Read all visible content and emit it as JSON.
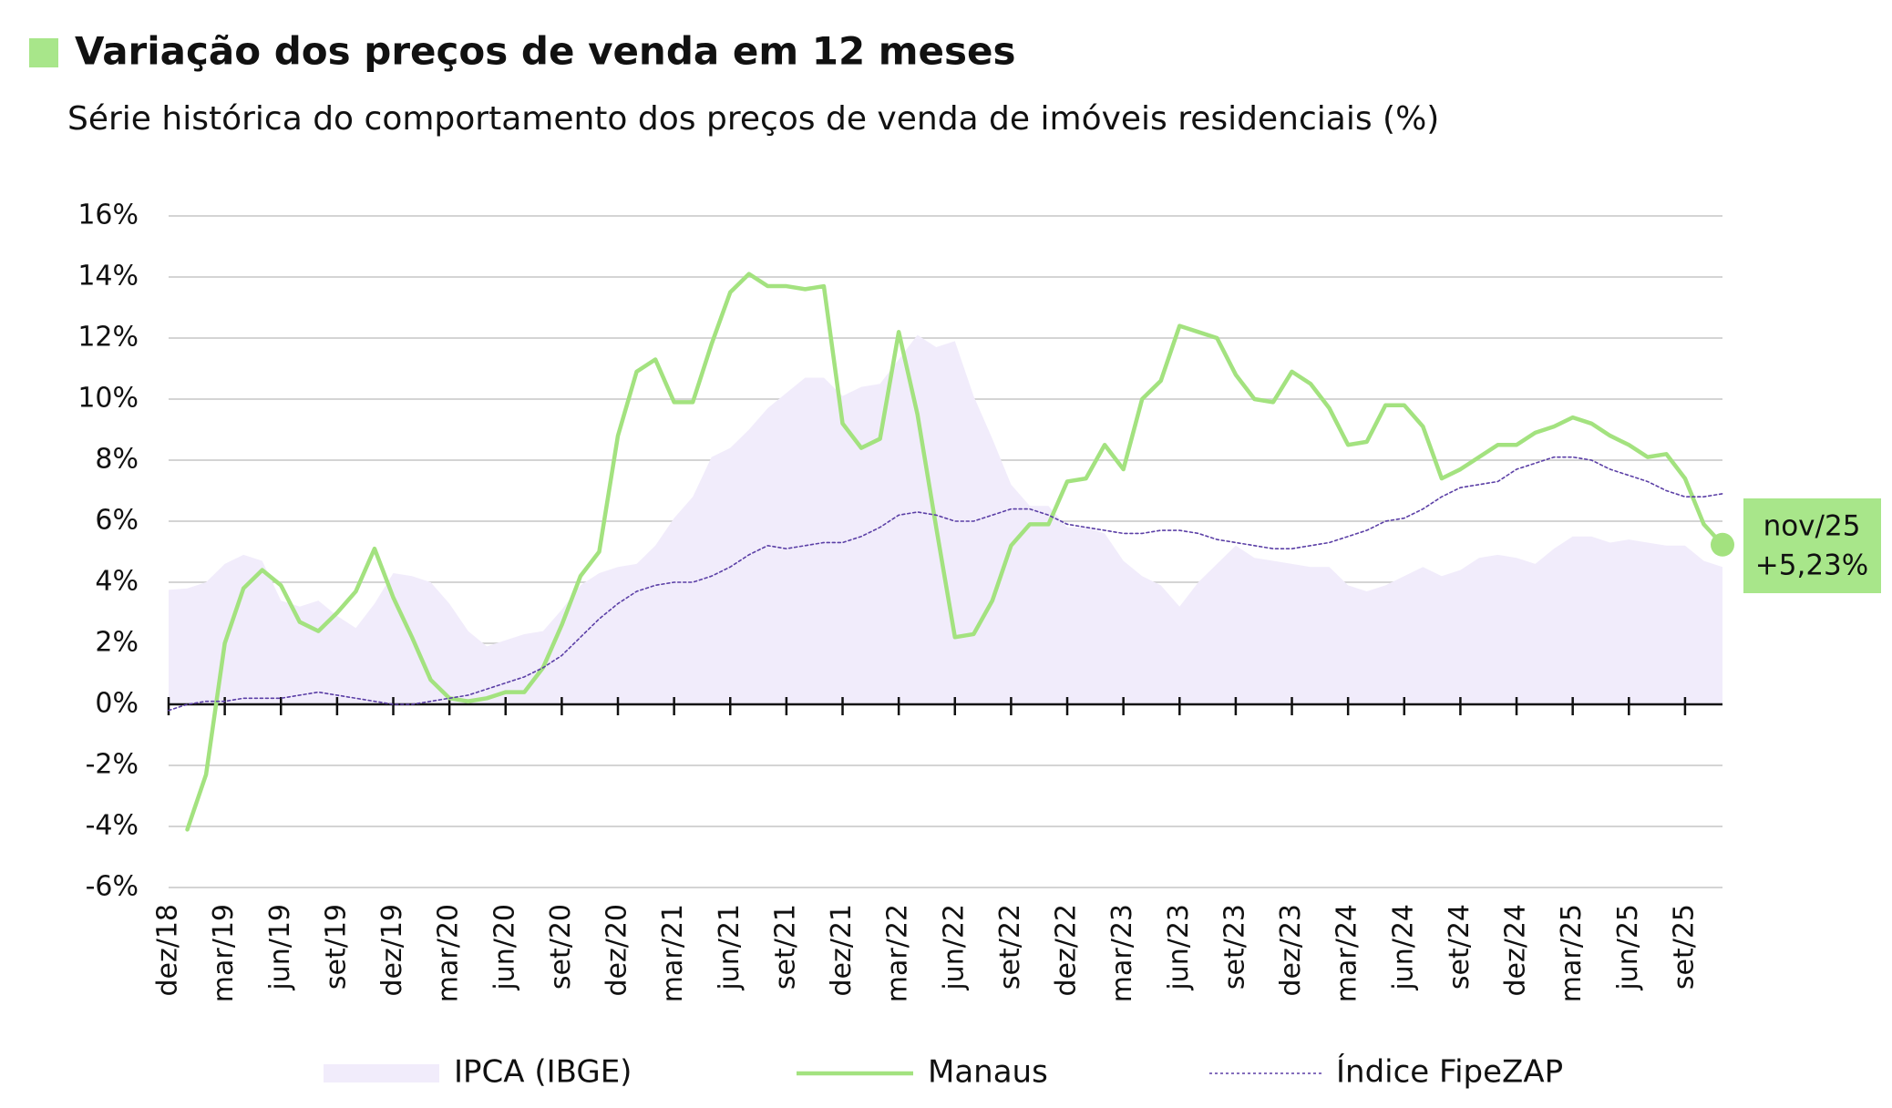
{
  "chart_data": {
    "type": "line",
    "title": "Variação dos preços de venda em 12 meses",
    "subtitle": "Série histórica do comportamento dos preços de venda de imóveis residenciais (%)",
    "categories": [
      "dez/18",
      null,
      null,
      "mar/19",
      null,
      null,
      "jun/19",
      null,
      null,
      "set/19",
      null,
      null,
      "dez/19",
      null,
      null,
      "mar/20",
      null,
      null,
      "jun/20",
      null,
      null,
      "set/20",
      null,
      null,
      "dez/20",
      null,
      null,
      "mar/21",
      null,
      null,
      "jun/21",
      null,
      null,
      "set/21",
      null,
      null,
      "dez/21",
      null,
      null,
      "mar/22",
      null,
      null,
      "jun/22",
      null,
      null,
      "set/22",
      null,
      null,
      "dez/22",
      null,
      null,
      "mar/23",
      null,
      null,
      "jun/23",
      null,
      null,
      "set/23",
      null,
      null,
      "dez/23",
      null,
      null,
      "mar/24",
      null,
      null,
      "jun/24",
      null,
      null,
      "set/24",
      null,
      null,
      "dez/24",
      null,
      null,
      "mar/25",
      null,
      null,
      "jun/25",
      null,
      null,
      "set/25",
      null,
      null
    ],
    "series": [
      {
        "name": "IPCA (IBGE)",
        "kind": "area",
        "color": "#f1ecfb",
        "values": [
          3.75,
          3.8,
          4.0,
          4.6,
          4.9,
          4.7,
          3.4,
          3.2,
          3.4,
          2.9,
          2.5,
          3.3,
          4.3,
          4.2,
          4.0,
          3.3,
          2.4,
          1.9,
          2.1,
          2.3,
          2.4,
          3.1,
          3.9,
          4.3,
          4.5,
          4.6,
          5.2,
          6.1,
          6.8,
          8.1,
          8.4,
          9.0,
          9.7,
          10.2,
          10.7,
          10.7,
          10.1,
          10.4,
          10.5,
          11.3,
          12.1,
          11.7,
          11.9,
          10.1,
          8.7,
          7.2,
          6.5,
          6.5,
          5.8,
          5.8,
          5.6,
          4.7,
          4.2,
          3.9,
          3.2,
          4.0,
          4.6,
          5.2,
          4.8,
          4.7,
          4.6,
          4.5,
          4.5,
          3.9,
          3.7,
          3.9,
          4.2,
          4.5,
          4.2,
          4.4,
          4.8,
          4.9,
          4.8,
          4.6,
          5.1,
          5.5,
          5.5,
          5.3,
          5.4,
          5.3,
          5.2,
          5.2,
          4.7,
          4.5
        ]
      },
      {
        "name": "Manaus",
        "kind": "solid",
        "color": "#a3e27f",
        "values": [
          null,
          -4.1,
          -2.3,
          2.0,
          3.8,
          4.4,
          3.9,
          2.7,
          2.4,
          3.0,
          3.7,
          5.1,
          3.5,
          2.2,
          0.8,
          0.2,
          0.1,
          0.2,
          0.4,
          0.4,
          1.2,
          2.6,
          4.2,
          5.0,
          8.8,
          10.9,
          11.3,
          9.9,
          9.9,
          11.8,
          13.5,
          14.1,
          13.7,
          13.7,
          13.6,
          13.7,
          9.2,
          8.4,
          8.7,
          12.2,
          9.5,
          5.8,
          2.2,
          2.3,
          3.4,
          5.2,
          5.9,
          5.9,
          7.3,
          7.4,
          8.5,
          7.7,
          10.0,
          10.6,
          12.4,
          12.2,
          12.0,
          10.8,
          10.0,
          9.9,
          10.9,
          10.5,
          9.7,
          8.5,
          8.6,
          9.8,
          9.8,
          9.1,
          7.4,
          7.7,
          8.1,
          8.5,
          8.5,
          8.9,
          9.1,
          9.4,
          9.2,
          8.8,
          8.5,
          8.1,
          8.2,
          7.4,
          5.9,
          5.23
        ]
      },
      {
        "name": "Índice FipeZAP",
        "kind": "dotted",
        "color": "#5b3fa6",
        "values": [
          -0.2,
          0.0,
          0.1,
          0.1,
          0.2,
          0.2,
          0.2,
          0.3,
          0.4,
          0.3,
          0.2,
          0.1,
          0.0,
          0.0,
          0.1,
          0.2,
          0.3,
          0.5,
          0.7,
          0.9,
          1.2,
          1.6,
          2.2,
          2.8,
          3.3,
          3.7,
          3.9,
          4.0,
          4.0,
          4.2,
          4.5,
          4.9,
          5.2,
          5.1,
          5.2,
          5.3,
          5.3,
          5.5,
          5.8,
          6.2,
          6.3,
          6.2,
          6.0,
          6.0,
          6.2,
          6.4,
          6.4,
          6.2,
          5.9,
          5.8,
          5.7,
          5.6,
          5.6,
          5.7,
          5.7,
          5.6,
          5.4,
          5.3,
          5.2,
          5.1,
          5.1,
          5.2,
          5.3,
          5.5,
          5.7,
          6.0,
          6.1,
          6.4,
          6.8,
          7.1,
          7.2,
          7.3,
          7.7,
          7.9,
          8.1,
          8.1,
          8.0,
          7.7,
          7.5,
          7.3,
          7.0,
          6.8,
          6.8,
          6.9
        ]
      }
    ],
    "annotation": {
      "label": "nov/25",
      "value": 5.23,
      "text": "+5,23%",
      "color": "#a8e68a"
    },
    "ylim": [
      -6,
      16
    ],
    "yticks": [
      {
        "value": -6,
        "label": "-6%"
      },
      {
        "value": -4,
        "label": "-4%"
      },
      {
        "value": -2,
        "label": "-2%"
      },
      {
        "value": 0,
        "label": "0%"
      },
      {
        "value": 2,
        "label": "2%"
      },
      {
        "value": 4,
        "label": "4%"
      },
      {
        "value": 6,
        "label": "6%"
      },
      {
        "value": 8,
        "label": "8%"
      },
      {
        "value": 10,
        "label": "10%"
      },
      {
        "value": 12,
        "label": "12%"
      },
      {
        "value": 14,
        "label": "14%"
      },
      {
        "value": 16,
        "label": "16%"
      }
    ],
    "grid": true
  }
}
